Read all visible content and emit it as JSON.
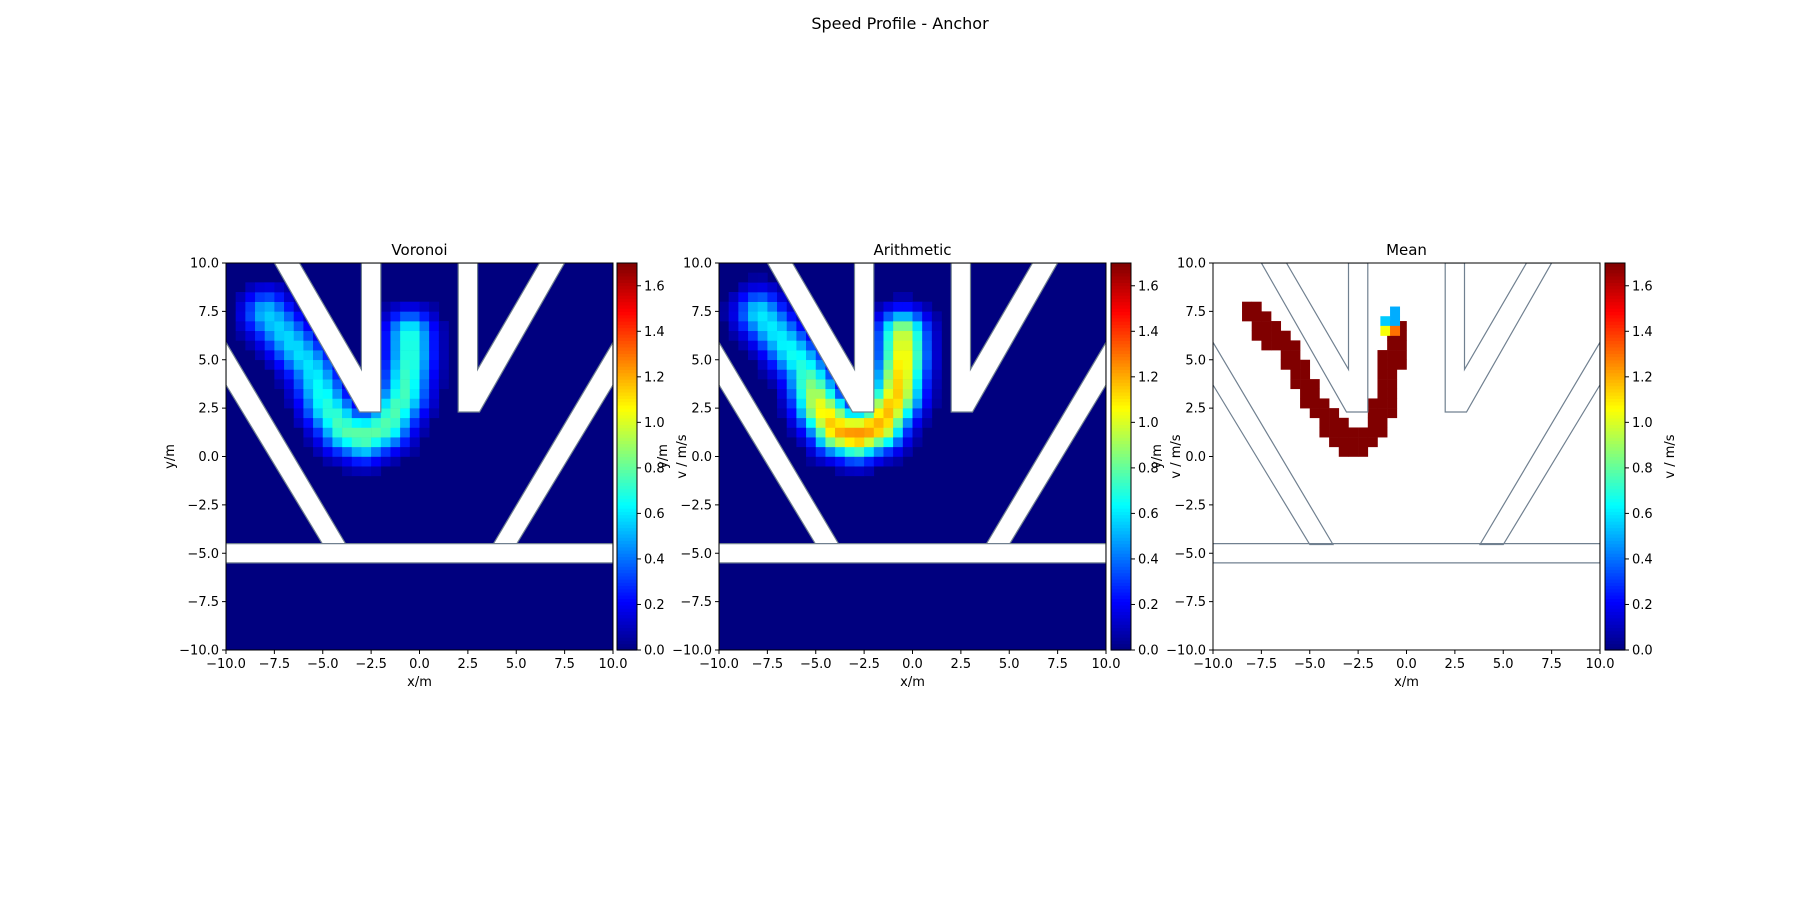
{
  "figure": {
    "title": "Speed Profile - Anchor"
  },
  "chart_data": [
    {
      "type": "heatmap",
      "title": "Voronoi",
      "xlabel": "x/m",
      "ylabel": "y/m",
      "xlim": [
        -10,
        10
      ],
      "ylim": [
        -10,
        10
      ],
      "x_ticks": [
        "−10.0",
        "−7.5",
        "−5.0",
        "−2.5",
        "0.0",
        "2.5",
        "5.0",
        "7.5",
        "10.0"
      ],
      "y_ticks": [
        "−10.0",
        "−7.5",
        "−5.0",
        "−2.5",
        "0.0",
        "2.5",
        "5.0",
        "7.5",
        "10.0"
      ],
      "colorbar": {
        "label": "v / m/s",
        "cmap": "jet",
        "range": [
          0,
          1.7
        ],
        "ticks": [
          "0.0",
          "0.2",
          "0.4",
          "0.6",
          "0.8",
          "1.0",
          "1.2",
          "1.4",
          "1.6"
        ]
      },
      "background": "#00007f",
      "path_points": [
        [
          -7.9,
          7.4
        ],
        [
          -6.8,
          6.1
        ],
        [
          -5.6,
          4.6
        ],
        [
          -4.8,
          2.6
        ],
        [
          -3.9,
          1.4
        ],
        [
          -2.9,
          1.0
        ],
        [
          -1.7,
          1.6
        ],
        [
          -0.8,
          3.2
        ],
        [
          -0.5,
          5.1
        ],
        [
          -0.5,
          6.3
        ]
      ],
      "peak_speed": [
        0.55,
        0.58,
        0.6,
        0.7,
        0.78,
        0.8,
        0.78,
        0.75,
        0.72,
        0.7
      ],
      "grid": false
    },
    {
      "type": "heatmap",
      "title": "Arithmetic",
      "xlabel": "x/m",
      "ylabel": "y/m",
      "xlim": [
        -10,
        10
      ],
      "ylim": [
        -10,
        10
      ],
      "x_ticks": [
        "−10.0",
        "−7.5",
        "−5.0",
        "−2.5",
        "0.0",
        "2.5",
        "5.0",
        "7.5",
        "10.0"
      ],
      "y_ticks": [
        "−10.0",
        "−7.5",
        "−5.0",
        "−2.5",
        "0.0",
        "2.5",
        "5.0",
        "7.5",
        "10.0"
      ],
      "colorbar": {
        "label": "v / m/s",
        "cmap": "jet",
        "range": [
          0,
          1.7
        ],
        "ticks": [
          "0.0",
          "0.2",
          "0.4",
          "0.6",
          "0.8",
          "1.0",
          "1.2",
          "1.4",
          "1.6"
        ]
      },
      "background": "#00007f",
      "path_points": [
        [
          -7.9,
          7.4
        ],
        [
          -6.8,
          6.1
        ],
        [
          -5.6,
          4.6
        ],
        [
          -4.8,
          2.6
        ],
        [
          -3.9,
          1.4
        ],
        [
          -2.9,
          1.1
        ],
        [
          -1.7,
          1.6
        ],
        [
          -0.8,
          3.2
        ],
        [
          -0.5,
          5.1
        ],
        [
          -0.5,
          6.3
        ]
      ],
      "peak_speed": [
        0.6,
        0.62,
        0.7,
        1.05,
        1.2,
        1.25,
        1.2,
        1.15,
        1.1,
        1.0
      ],
      "grid": false
    },
    {
      "type": "heatmap",
      "title": "Mean",
      "xlabel": "x/m",
      "ylabel": "y/m",
      "xlim": [
        -10,
        10
      ],
      "ylim": [
        -10,
        10
      ],
      "x_ticks": [
        "−10.0",
        "−7.5",
        "−5.0",
        "−2.5",
        "0.0",
        "2.5",
        "5.0",
        "7.5",
        "10.0"
      ],
      "y_ticks": [
        "−10.0",
        "−7.5",
        "−5.0",
        "−2.5",
        "0.0",
        "2.5",
        "5.0",
        "7.5",
        "10.0"
      ],
      "colorbar": {
        "label": "v / m/s",
        "cmap": "jet",
        "range": [
          0,
          1.7
        ],
        "ticks": [
          "0.0",
          "0.2",
          "0.4",
          "0.6",
          "0.8",
          "1.0",
          "1.2",
          "1.4",
          "1.6"
        ]
      },
      "background": "#ffffff",
      "path_points": [
        [
          -8.1,
          7.5
        ],
        [
          -7.3,
          6.6
        ],
        [
          -6.2,
          5.6
        ],
        [
          -5.5,
          4.2
        ],
        [
          -4.9,
          3.0
        ],
        [
          -4.0,
          1.8
        ],
        [
          -3.0,
          0.6
        ],
        [
          -2.0,
          0.8
        ],
        [
          -1.2,
          2.2
        ],
        [
          -1.1,
          4.0
        ],
        [
          -0.6,
          5.6
        ],
        [
          -0.6,
          6.3
        ]
      ],
      "cell_values": [
        {
          "x": -0.6,
          "y": 7.5,
          "v": 0.5
        },
        {
          "x": -1.1,
          "y": 7.0,
          "v": 0.55
        },
        {
          "x": -0.6,
          "y": 7.0,
          "v": 0.5
        },
        {
          "x": -1.1,
          "y": 6.5,
          "v": 1.05
        },
        {
          "x": -0.6,
          "y": 6.5,
          "v": 1.3
        }
      ],
      "peak_speed": 1.7,
      "grid": false
    }
  ],
  "geometry_outline_color": "#708090"
}
